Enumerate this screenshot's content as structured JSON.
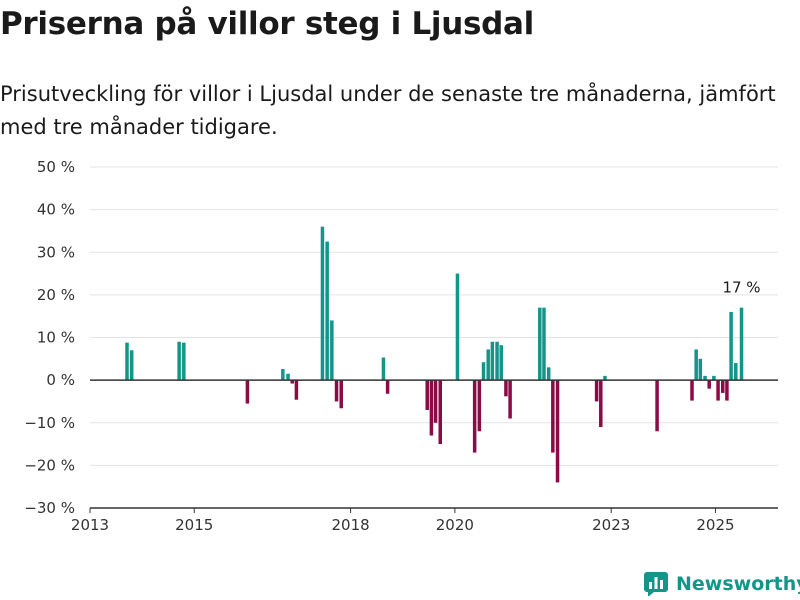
{
  "title": "Priserna på villor steg i Ljusdal",
  "subtitle": "Prisutveckling för villor i Ljusdal under de senaste tre månaderna, jämfört med tre månader tidigare.",
  "brand": "Newsworthy",
  "colors": {
    "positive": "#14958a",
    "negative": "#8c0a46",
    "grid": "#e3e3e3",
    "zero_line": "#333333"
  },
  "chart_data": {
    "type": "bar",
    "xlabel": "",
    "ylabel": "",
    "ylim": [
      -30,
      50
    ],
    "xlim": [
      2013.0,
      2026.2
    ],
    "grid": true,
    "y_ticks": [
      -30,
      -20,
      -10,
      0,
      10,
      20,
      30,
      40,
      50
    ],
    "y_tick_labels": [
      "−30 %",
      "−20 %",
      "−10 %",
      "0 %",
      "10 %",
      "20 %",
      "30 %",
      "40 %",
      "50 %"
    ],
    "x_ticks": [
      2013,
      2015,
      2018,
      2020,
      2023,
      2025
    ],
    "x_tick_labels": [
      "2013",
      "2015",
      "2018",
      "2020",
      "2023",
      "2025"
    ],
    "annotations": [
      {
        "x": 2025.5,
        "y": 17,
        "text": "17 %"
      }
    ],
    "bars": [
      {
        "x": 2013.71,
        "value": 8.8
      },
      {
        "x": 2013.8,
        "value": 7.0
      },
      {
        "x": 2014.71,
        "value": 9.0
      },
      {
        "x": 2014.8,
        "value": 8.8
      },
      {
        "x": 2016.02,
        "value": -5.5
      },
      {
        "x": 2016.7,
        "value": 2.6
      },
      {
        "x": 2016.8,
        "value": 1.5
      },
      {
        "x": 2016.88,
        "value": -0.8
      },
      {
        "x": 2016.96,
        "value": -4.6
      },
      {
        "x": 2017.46,
        "value": 36.0
      },
      {
        "x": 2017.55,
        "value": 32.5
      },
      {
        "x": 2017.64,
        "value": 14.0
      },
      {
        "x": 2017.73,
        "value": -5.0
      },
      {
        "x": 2017.82,
        "value": -6.6
      },
      {
        "x": 2018.63,
        "value": 5.3
      },
      {
        "x": 2018.71,
        "value": -3.2
      },
      {
        "x": 2019.47,
        "value": -7.0
      },
      {
        "x": 2019.55,
        "value": -13.0
      },
      {
        "x": 2019.63,
        "value": -10.0
      },
      {
        "x": 2019.72,
        "value": -15.0
      },
      {
        "x": 2020.05,
        "value": 25.0
      },
      {
        "x": 2020.38,
        "value": -17.0
      },
      {
        "x": 2020.47,
        "value": -12.0
      },
      {
        "x": 2020.55,
        "value": 4.2
      },
      {
        "x": 2020.64,
        "value": 7.2
      },
      {
        "x": 2020.72,
        "value": 9.0
      },
      {
        "x": 2020.81,
        "value": 9.0
      },
      {
        "x": 2020.89,
        "value": 8.2
      },
      {
        "x": 2020.98,
        "value": -3.8
      },
      {
        "x": 2021.06,
        "value": -9.0
      },
      {
        "x": 2021.63,
        "value": 17.0
      },
      {
        "x": 2021.71,
        "value": 17.0
      },
      {
        "x": 2021.8,
        "value": 3.0
      },
      {
        "x": 2021.88,
        "value": -17.0
      },
      {
        "x": 2021.97,
        "value": -24.0
      },
      {
        "x": 2022.72,
        "value": -5.0
      },
      {
        "x": 2022.8,
        "value": -11.0
      },
      {
        "x": 2022.88,
        "value": 1.0
      },
      {
        "x": 2023.88,
        "value": -12.0
      },
      {
        "x": 2024.55,
        "value": -4.8
      },
      {
        "x": 2024.63,
        "value": 7.2
      },
      {
        "x": 2024.71,
        "value": 5.0
      },
      {
        "x": 2024.8,
        "value": 1.0
      },
      {
        "x": 2024.88,
        "value": -2.0
      },
      {
        "x": 2024.97,
        "value": 1.0
      },
      {
        "x": 2025.05,
        "value": -4.8
      },
      {
        "x": 2025.14,
        "value": -3.0
      },
      {
        "x": 2025.22,
        "value": -4.8
      },
      {
        "x": 2025.3,
        "value": 16.0
      },
      {
        "x": 2025.39,
        "value": 4.0
      },
      {
        "x": 2025.5,
        "value": 17.0
      }
    ]
  }
}
